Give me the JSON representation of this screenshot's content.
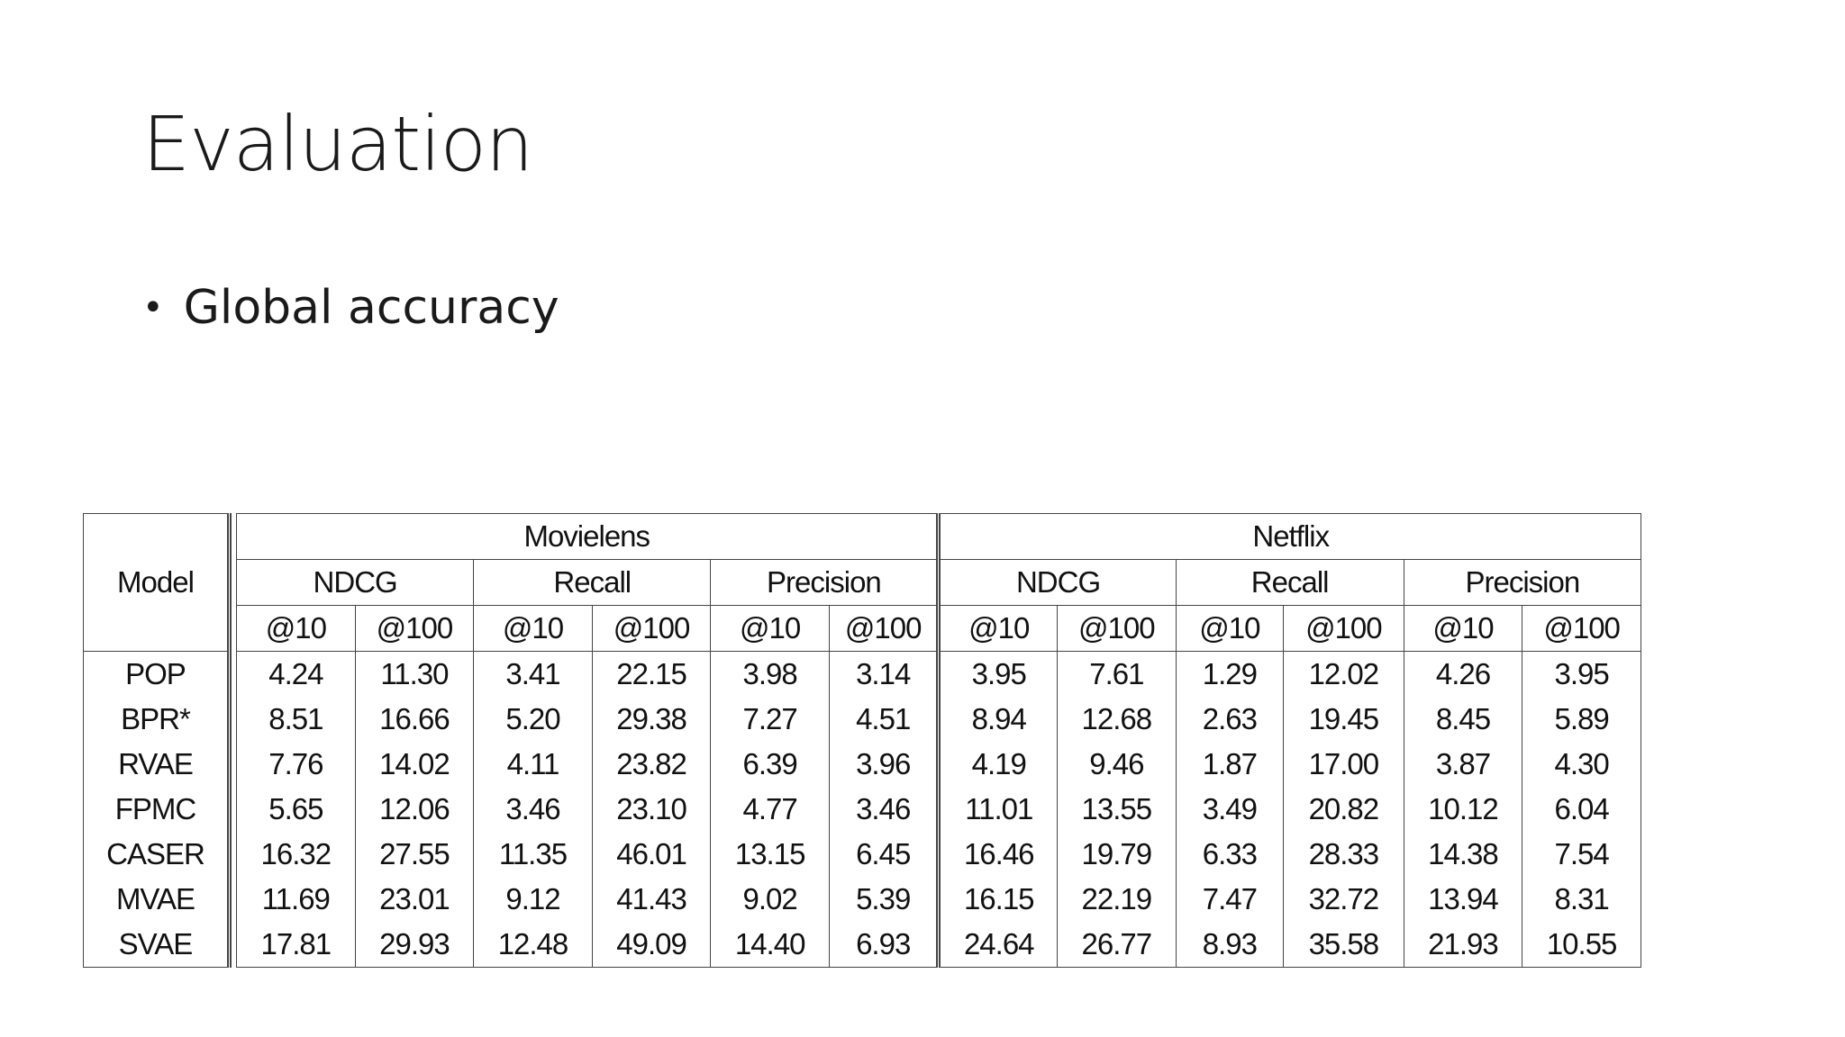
{
  "slide": {
    "title": "Evaluation",
    "bullet": "Global accuracy"
  },
  "table": {
    "model_header": "Model",
    "datasets": [
      "Movielens",
      "Netflix"
    ],
    "metrics": [
      "NDCG",
      "Recall",
      "Precision",
      "NDCG",
      "Recall",
      "Precision"
    ],
    "cutoffs": [
      "@10",
      "@100",
      "@10",
      "@100",
      "@10",
      "@100",
      "@10",
      "@100",
      "@10",
      "@100",
      "@10",
      "@100"
    ],
    "rows": [
      {
        "model": "POP",
        "values": [
          "4.24",
          "11.30",
          "3.41",
          "22.15",
          "3.98",
          "3.14",
          "3.95",
          "7.61",
          "1.29",
          "12.02",
          "4.26",
          "3.95"
        ]
      },
      {
        "model": "BPR*",
        "values": [
          "8.51",
          "16.66",
          "5.20",
          "29.38",
          "7.27",
          "4.51",
          "8.94",
          "12.68",
          "2.63",
          "19.45",
          "8.45",
          "5.89"
        ]
      },
      {
        "model": "RVAE",
        "values": [
          "7.76",
          "14.02",
          "4.11",
          "23.82",
          "6.39",
          "3.96",
          "4.19",
          "9.46",
          "1.87",
          "17.00",
          "3.87",
          "4.30"
        ]
      },
      {
        "model": "FPMC",
        "values": [
          "5.65",
          "12.06",
          "3.46",
          "23.10",
          "4.77",
          "3.46",
          "11.01",
          "13.55",
          "3.49",
          "20.82",
          "10.12",
          "6.04"
        ]
      },
      {
        "model": "CASER",
        "values": [
          "16.32",
          "27.55",
          "11.35",
          "46.01",
          "13.15",
          "6.45",
          "16.46",
          "19.79",
          "6.33",
          "28.33",
          "14.38",
          "7.54"
        ]
      },
      {
        "model": "MVAE",
        "values": [
          "11.69",
          "23.01",
          "9.12",
          "41.43",
          "9.02",
          "5.39",
          "16.15",
          "22.19",
          "7.47",
          "32.72",
          "13.94",
          "8.31"
        ]
      },
      {
        "model": "SVAE",
        "values": [
          "17.81",
          "29.93",
          "12.48",
          "49.09",
          "14.40",
          "6.93",
          "24.64",
          "26.77",
          "8.93",
          "35.58",
          "21.93",
          "10.55"
        ]
      }
    ]
  }
}
